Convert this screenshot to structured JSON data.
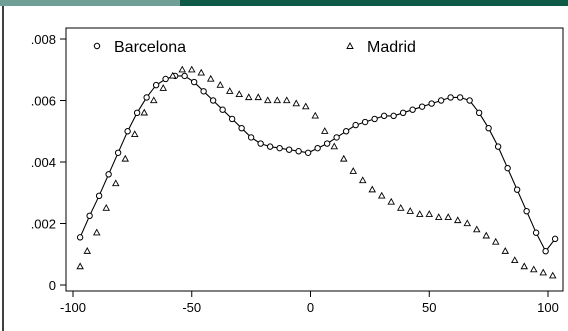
{
  "colors": {
    "band_left": "#6f9f97",
    "band_right": "#0f5a46",
    "frame": "#000000",
    "series_line": "#000000"
  },
  "chart_data": {
    "type": "scatter",
    "xlim": [
      -100,
      100
    ],
    "ylim": [
      0,
      0.008
    ],
    "x_ticks": [
      "-100",
      "-50",
      "0",
      "50",
      "100"
    ],
    "y_ticks": [
      "0",
      ".002",
      ".004",
      ".006",
      ".008"
    ],
    "grid": false,
    "legend_position": "top",
    "series": [
      {
        "name": "Barcelona",
        "marker": "circle",
        "line": true,
        "x": [
          -97,
          -93,
          -89,
          -85,
          -81,
          -77,
          -73,
          -69,
          -65,
          -61,
          -57,
          -53,
          -49,
          -45,
          -41,
          -37,
          -33,
          -29,
          -25,
          -21,
          -17,
          -13,
          -9,
          -5,
          -1,
          3,
          7,
          11,
          15,
          19,
          23,
          27,
          31,
          35,
          39,
          43,
          47,
          51,
          55,
          59,
          63,
          67,
          71,
          75,
          79,
          83,
          87,
          91,
          95,
          99,
          103
        ],
        "y": [
          0.00155,
          0.00225,
          0.0029,
          0.0036,
          0.0043,
          0.005,
          0.0056,
          0.0061,
          0.0065,
          0.0067,
          0.0068,
          0.0068,
          0.0066,
          0.0063,
          0.006,
          0.0057,
          0.0054,
          0.0051,
          0.0048,
          0.0046,
          0.0045,
          0.00445,
          0.0044,
          0.00435,
          0.0043,
          0.00445,
          0.0046,
          0.0048,
          0.005,
          0.0052,
          0.0053,
          0.0054,
          0.0055,
          0.0055,
          0.0056,
          0.0057,
          0.0058,
          0.0059,
          0.006,
          0.0061,
          0.0061,
          0.006,
          0.0056,
          0.0051,
          0.0045,
          0.0038,
          0.0031,
          0.0024,
          0.0017,
          0.0011,
          0.0015
        ]
      },
      {
        "name": "Madrid",
        "marker": "triangle",
        "line": false,
        "x": [
          -97,
          -94,
          -90,
          -86,
          -82,
          -78,
          -74,
          -70,
          -66,
          -62,
          -58,
          -54,
          -50,
          -46,
          -42,
          -38,
          -34,
          -30,
          -26,
          -22,
          -18,
          -14,
          -10,
          -6,
          -2,
          2,
          6,
          10,
          14,
          18,
          22,
          26,
          30,
          34,
          38,
          42,
          46,
          50,
          54,
          58,
          62,
          66,
          70,
          74,
          78,
          82,
          86,
          90,
          94,
          98,
          102
        ],
        "y": [
          0.0006,
          0.0011,
          0.0017,
          0.0025,
          0.0033,
          0.0041,
          0.0049,
          0.0056,
          0.006,
          0.0064,
          0.0068,
          0.007,
          0.007,
          0.0069,
          0.0067,
          0.0065,
          0.0063,
          0.0062,
          0.0061,
          0.0061,
          0.006,
          0.006,
          0.006,
          0.0059,
          0.0058,
          0.0055,
          0.005,
          0.0045,
          0.0041,
          0.0037,
          0.0034,
          0.0031,
          0.0029,
          0.0027,
          0.0025,
          0.0024,
          0.0023,
          0.0023,
          0.0022,
          0.0022,
          0.0021,
          0.002,
          0.0018,
          0.0016,
          0.0014,
          0.0011,
          0.0008,
          0.0006,
          0.0005,
          0.0004,
          0.0003
        ]
      }
    ]
  }
}
